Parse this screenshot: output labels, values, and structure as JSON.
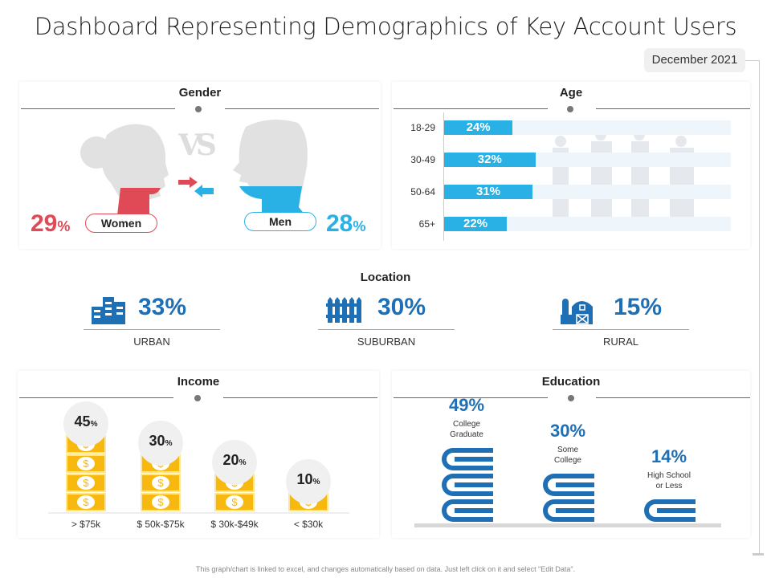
{
  "title": "Dashboard Representing Demographics of Key Account Users",
  "date": "December 2021",
  "gender": {
    "title": "Gender",
    "vs": "VS",
    "women": {
      "label": "Women",
      "value": "29",
      "unit": "%",
      "color": "#e04a56"
    },
    "men": {
      "label": "Men",
      "value": "28",
      "unit": "%",
      "color": "#29b1e6"
    }
  },
  "age": {
    "title": "Age",
    "color": "#29b1e6",
    "rows": [
      {
        "label": "18-29",
        "value": 24,
        "text": "24%"
      },
      {
        "label": "30-49",
        "value": 32,
        "text": "32%"
      },
      {
        "label": "50-64",
        "value": 31,
        "text": "31%"
      },
      {
        "label": "65+",
        "value": 22,
        "text": "22%"
      }
    ]
  },
  "location": {
    "title": "Location",
    "color": "#1f6fb5",
    "items": [
      {
        "label": "URBAN",
        "value": "33%",
        "icon": "buildings-icon"
      },
      {
        "label": "SUBURBAN",
        "value": "30%",
        "icon": "fence-icon"
      },
      {
        "label": "RURAL",
        "value": "15%",
        "icon": "barn-icon"
      }
    ]
  },
  "income": {
    "title": "Income",
    "color": "#f7b90f",
    "items": [
      {
        "label": "> $75k",
        "value": 45,
        "text": "45",
        "unit": "%"
      },
      {
        "label": "$ 50k-$75k",
        "value": 30,
        "text": "30",
        "unit": "%"
      },
      {
        "label": "$ 30k-$49k",
        "value": 20,
        "text": "20",
        "unit": "%"
      },
      {
        "label": "< $30k",
        "value": 10,
        "text": "10",
        "unit": "%"
      }
    ]
  },
  "education": {
    "title": "Education",
    "color": "#1f6fb5",
    "items": [
      {
        "label_1": "College",
        "label_2": "Graduate",
        "value": 49,
        "text": "49%"
      },
      {
        "label_1": "Some",
        "label_2": "College",
        "value": 30,
        "text": "30%"
      },
      {
        "label_1": "High School",
        "label_2": "or Less",
        "value": 14,
        "text": "14%"
      }
    ]
  },
  "footer": "This graph/chart is linked to excel, and changes automatically based on data. Just left click on it and select \"Edit Data\"."
}
